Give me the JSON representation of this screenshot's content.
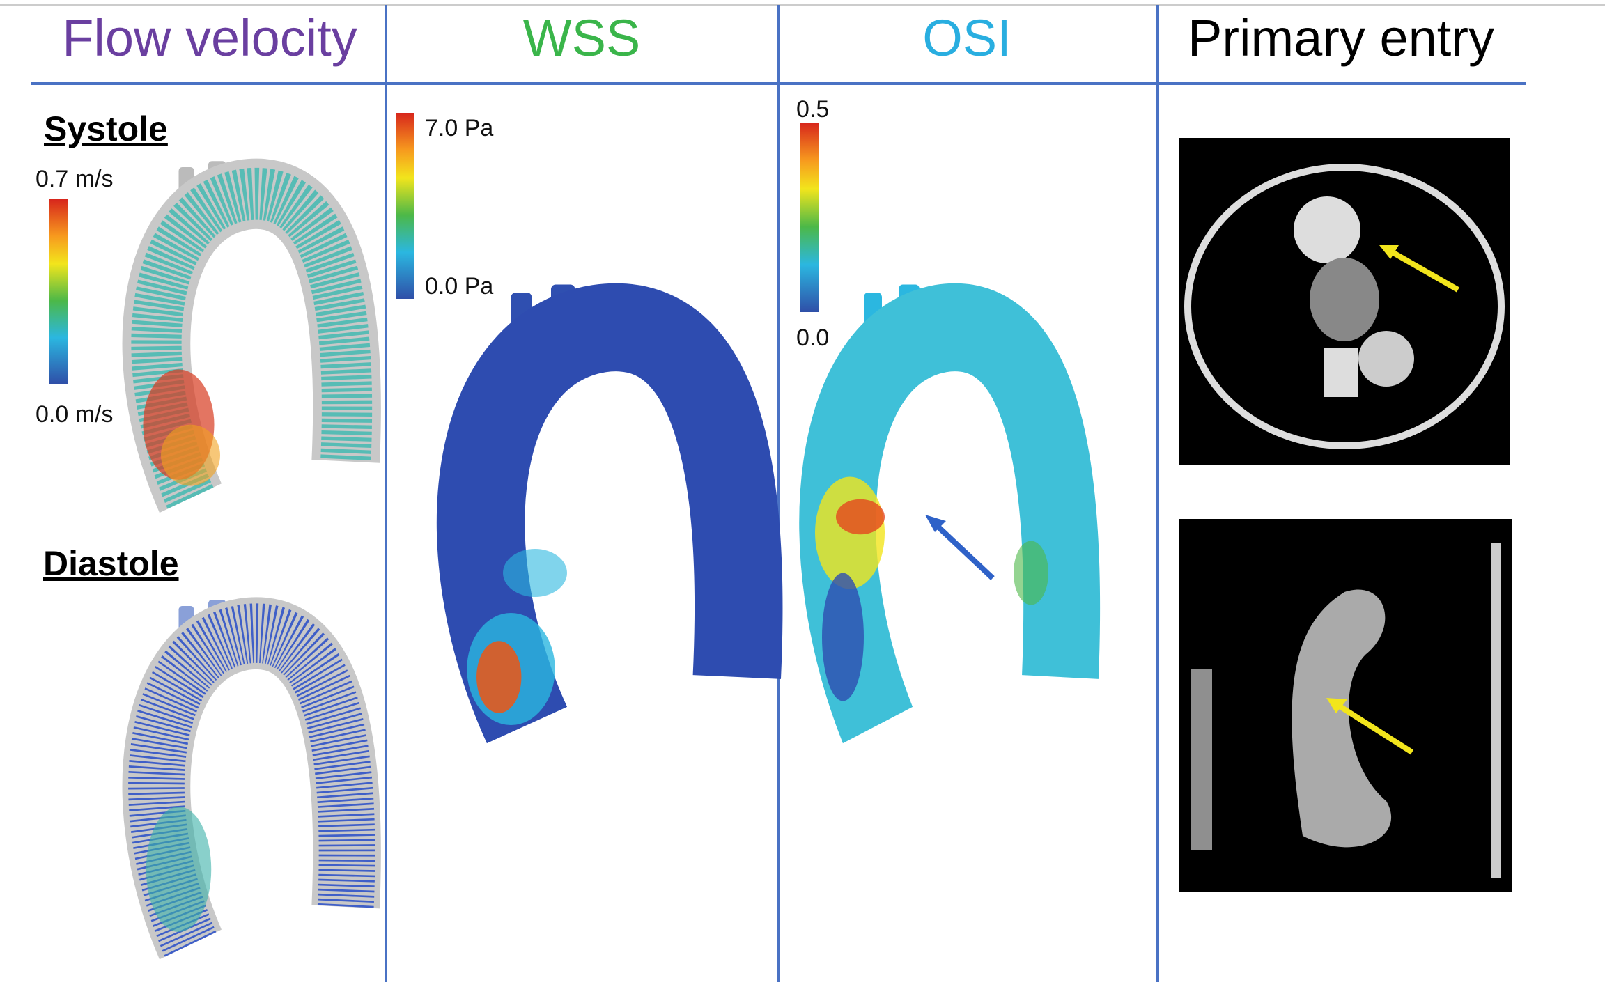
{
  "panels": [
    {
      "title": "Flow velocity",
      "sections": [
        {
          "label": "Systole",
          "scale_max": "0.7 m/s",
          "scale_min": "0.0 m/s"
        },
        {
          "label": "Diastole"
        }
      ]
    },
    {
      "title": "WSS",
      "scale_max": "7.0 Pa",
      "scale_min": "0.0 Pa"
    },
    {
      "title": "OSI",
      "scale_max": "0.5",
      "scale_min": "0.0"
    },
    {
      "title": "Primary entry"
    }
  ]
}
